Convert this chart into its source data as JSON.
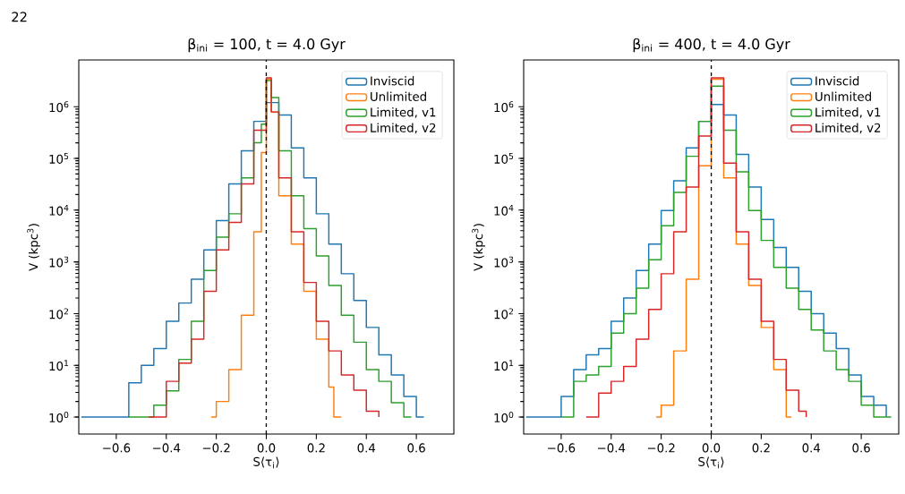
{
  "chart_data": [
    {
      "type": "step",
      "title": "β$_{ini}$ = 100, t = 4.0 Gyr",
      "xlabel": "S⟨τ$_{i}$⟩",
      "ylabel": "V (kpc$^{3}$)",
      "annotations": [
        "22"
      ],
      "log": true,
      "legend": "top right",
      "xlim": [
        -0.75,
        0.75
      ],
      "ylim": [
        0.47,
        8000000
      ],
      "xticks": [
        {
          "value": -0.6,
          "label": "−0.6"
        },
        {
          "value": -0.4,
          "label": "−0.4"
        },
        {
          "value": -0.2,
          "label": "−0.2"
        },
        {
          "value": 0,
          "label": "0.0"
        },
        0.2,
        0.4,
        0.6
      ],
      "yticks": [
        {
          "value": 1,
          "label": "10$^{0}$"
        },
        {
          "value": 10,
          "label": "10$^{1}$"
        },
        {
          "value": 100,
          "label": "10$^{2}$"
        },
        {
          "value": 1000,
          "label": "10$^{3}$"
        },
        {
          "value": 10000,
          "label": "10$^{4}$"
        },
        {
          "value": 100000,
          "label": "10$^{5}$"
        },
        {
          "value": 1000000,
          "label": "10$^{6}$"
        }
      ],
      "ref_lines": [
        {
          "axis": "x",
          "value": 0,
          "color": "#000000",
          "line_style": "dashed"
        }
      ],
      "series": [
        {
          "name": "Inviscid",
          "color": "#1f77b4",
          "x": [
            -0.74,
            -0.6,
            -0.55,
            -0.5,
            -0.45,
            -0.4,
            -0.35,
            -0.3,
            -0.25,
            -0.2,
            -0.15,
            -0.1,
            -0.05,
            0,
            0.05,
            0.1,
            0.15,
            0.2,
            0.25,
            0.3,
            0.35,
            0.4,
            0.45,
            0.5,
            0.55,
            0.6,
            0.63
          ],
          "values": [
            1,
            1,
            4.6,
            10,
            21,
            71,
            160,
            460,
            1700,
            6300,
            32000,
            140000,
            520000,
            1200000,
            690000,
            160000,
            42000,
            8500,
            2200,
            590,
            180,
            54,
            16,
            6.5,
            2.5,
            1,
            1
          ]
        },
        {
          "name": "Unlimited",
          "color": "#ff7f0e",
          "x": [
            -0.22,
            -0.2,
            -0.15,
            -0.1,
            -0.05,
            -0.02,
            0,
            0.02,
            0.05,
            0.1,
            0.15,
            0.2,
            0.25,
            0.27,
            0.3
          ],
          "values": [
            1,
            2,
            8.3,
            93,
            3800,
            130000,
            3400000,
            790000,
            19000,
            2200,
            270,
            32,
            3.8,
            1,
            1
          ]
        },
        {
          "name": "Limited, v1",
          "color": "#2ca02c",
          "x": [
            -0.55,
            -0.45,
            -0.4,
            -0.35,
            -0.3,
            -0.25,
            -0.2,
            -0.15,
            -0.1,
            -0.05,
            -0.02,
            0,
            0.02,
            0.05,
            0.1,
            0.15,
            0.2,
            0.25,
            0.3,
            0.35,
            0.4,
            0.45,
            0.5,
            0.55,
            0.58
          ],
          "values": [
            1,
            1.7,
            3.2,
            13,
            71,
            680,
            3000,
            8500,
            42000,
            200000,
            460000,
            3200000,
            1500000,
            140000,
            19000,
            4400,
            1300,
            350,
            93,
            28,
            8.3,
            4.9,
            1.9,
            1,
            1
          ]
        },
        {
          "name": "Limited, v2",
          "color": "#d62728",
          "x": [
            -0.47,
            -0.4,
            -0.35,
            -0.3,
            -0.25,
            -0.2,
            -0.15,
            -0.1,
            -0.05,
            0,
            0.02,
            0.05,
            0.1,
            0.15,
            0.2,
            0.25,
            0.3,
            0.35,
            0.4,
            0.45
          ],
          "values": [
            1,
            4.9,
            11,
            32,
            270,
            1700,
            5800,
            32000,
            350000,
            3600000,
            790000,
            42000,
            3800,
            400,
            71,
            19,
            6.5,
            3.3,
            1.3,
            1
          ]
        }
      ]
    },
    {
      "type": "step",
      "title": "β$_{ini}$ = 400, t = 4.0 Gyr",
      "xlabel": "S⟨τ$_{i}$⟩",
      "ylabel": "V (kpc$^{3}$)",
      "log": true,
      "legend": "top right",
      "xlim": [
        -0.75,
        0.75
      ],
      "ylim": [
        0.47,
        8000000
      ],
      "xticks": [
        {
          "value": -0.6,
          "label": "−0.6"
        },
        {
          "value": -0.4,
          "label": "−0.4"
        },
        {
          "value": -0.2,
          "label": "−0.2"
        },
        {
          "value": 0,
          "label": "0.0"
        },
        0.2,
        0.4,
        0.6
      ],
      "yticks": [
        {
          "value": 1,
          "label": "10$^{0}$"
        },
        {
          "value": 10,
          "label": "10$^{1}$"
        },
        {
          "value": 100,
          "label": "10$^{2}$"
        },
        {
          "value": 1000,
          "label": "10$^{3}$"
        },
        {
          "value": 10000,
          "label": "10$^{4}$"
        },
        {
          "value": 100000,
          "label": "10$^{5}$"
        },
        {
          "value": 1000000,
          "label": "10$^{6}$"
        }
      ],
      "ref_lines": [
        {
          "axis": "x",
          "value": 0,
          "color": "#000000",
          "line_style": "dashed"
        }
      ],
      "series": [
        {
          "name": "Inviscid",
          "color": "#1f77b4",
          "x": [
            -0.74,
            -0.6,
            -0.55,
            -0.5,
            -0.45,
            -0.4,
            -0.35,
            -0.3,
            -0.25,
            -0.2,
            -0.15,
            -0.1,
            -0.05,
            0,
            0.05,
            0.1,
            0.15,
            0.2,
            0.25,
            0.3,
            0.35,
            0.4,
            0.45,
            0.5,
            0.55,
            0.6,
            0.65,
            0.7
          ],
          "values": [
            1,
            2.5,
            8.3,
            16,
            21,
            71,
            200,
            680,
            2200,
            9800,
            37000,
            160000,
            520000,
            1100000,
            690000,
            120000,
            28000,
            6600,
            1900,
            780,
            270,
            100,
            42,
            21,
            6.5,
            2.5,
            1.7,
            1
          ]
        },
        {
          "name": "Unlimited",
          "color": "#ff7f0e",
          "x": [
            -0.22,
            -0.2,
            -0.15,
            -0.1,
            -0.05,
            0,
            0.05,
            0.1,
            0.15,
            0.2,
            0.25,
            0.3,
            0.32
          ],
          "values": [
            1,
            1.7,
            19,
            460,
            72000,
            3400000,
            42000,
            2200,
            350,
            54,
            8.3,
            1,
            1
          ]
        },
        {
          "name": "Limited, v1",
          "color": "#2ca02c",
          "x": [
            -0.6,
            -0.55,
            -0.5,
            -0.45,
            -0.4,
            -0.35,
            -0.3,
            -0.25,
            -0.2,
            -0.15,
            -0.1,
            -0.05,
            0,
            0.05,
            0.1,
            0.15,
            0.2,
            0.25,
            0.3,
            0.35,
            0.4,
            0.45,
            0.5,
            0.55,
            0.6,
            0.65,
            0.72
          ],
          "values": [
            1,
            4.9,
            6.5,
            9.5,
            42,
            100,
            310,
            1100,
            5000,
            22000,
            110000,
            520000,
            2500000,
            350000,
            55000,
            9800,
            2600,
            780,
            310,
            120,
            48,
            19,
            8.3,
            4.9,
            1.7,
            1,
            1
          ]
        },
        {
          "name": "Limited, v2",
          "color": "#d62728",
          "x": [
            -0.5,
            -0.45,
            -0.4,
            -0.35,
            -0.3,
            -0.25,
            -0.2,
            -0.15,
            -0.1,
            -0.05,
            0,
            0.05,
            0.1,
            0.15,
            0.2,
            0.25,
            0.3,
            0.35,
            0.38
          ],
          "values": [
            1,
            2.9,
            4.9,
            9.5,
            32,
            120,
            590,
            3800,
            28000,
            270000,
            3600000,
            81000,
            3800,
            460,
            71,
            13,
            3.3,
            1.3,
            1
          ]
        }
      ]
    }
  ]
}
